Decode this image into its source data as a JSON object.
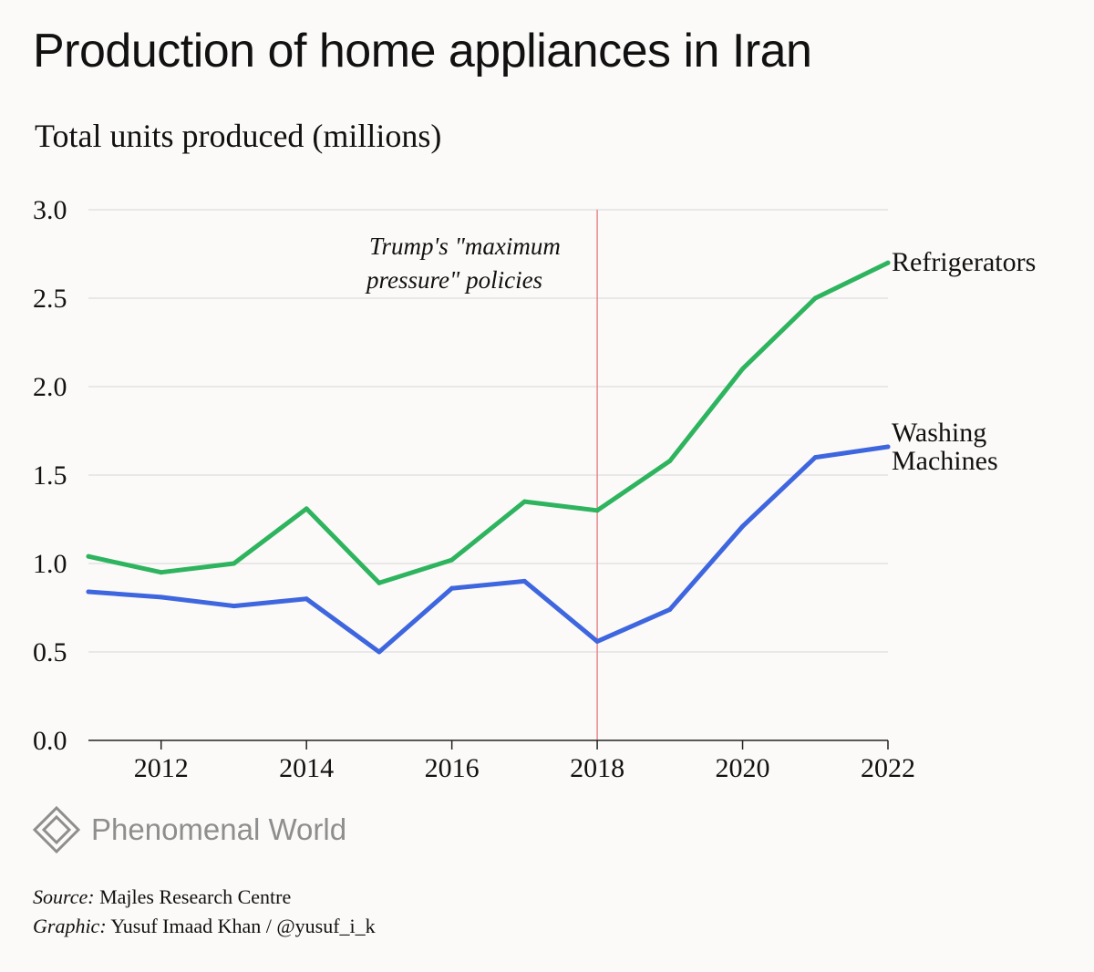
{
  "chart_data": {
    "type": "line",
    "title": "Production of home appliances in Iran",
    "subtitle": "Total units produced (millions)",
    "xlabel": "",
    "ylabel": "Total units produced (millions)",
    "x": [
      2011,
      2012,
      2013,
      2014,
      2015,
      2016,
      2017,
      2018,
      2019,
      2020,
      2021,
      2022
    ],
    "xlim": [
      2011,
      2022
    ],
    "ylim": [
      0,
      3
    ],
    "x_ticks": [
      2012,
      2014,
      2016,
      2018,
      2020,
      2022
    ],
    "x_tick_labels": [
      "2012",
      "2014",
      "2016",
      "2018",
      "2020",
      "2022"
    ],
    "y_ticks": [
      0,
      0.5,
      1,
      1.5,
      2,
      2.5,
      3
    ],
    "y_tick_labels": [
      "0.0",
      "0.5",
      "1.0",
      "1.5",
      "2.0",
      "2.5",
      "3.0"
    ],
    "grid": true,
    "series": [
      {
        "name": "Refrigerators",
        "label_lines": [
          "Refrigerators"
        ],
        "color": "#2eb45f",
        "values": [
          1.04,
          0.95,
          1.0,
          1.31,
          0.89,
          1.02,
          1.35,
          1.3,
          1.58,
          2.1,
          2.5,
          2.7
        ]
      },
      {
        "name": "Washing Machines",
        "label_lines": [
          "Washing",
          "Machines"
        ],
        "color": "#3e66de",
        "values": [
          0.84,
          0.81,
          0.76,
          0.8,
          0.5,
          0.86,
          0.9,
          0.56,
          0.74,
          1.21,
          1.6,
          1.66
        ]
      }
    ],
    "annotation": {
      "x": 2018,
      "lines": [
        "Trump's \"maximum",
        "pressure\" policies"
      ],
      "color": "#e8888a"
    }
  },
  "branding": {
    "logo_name": "Phenomenal World",
    "logo_icon": "diamond-logo-icon",
    "logo_color": "#8e8e8e"
  },
  "credits": {
    "source_label": "Source:",
    "source_text": "Majles Research Centre",
    "graphic_label": "Graphic:",
    "graphic_text": "Yusuf Imaad Khan / @yusuf_i_k"
  }
}
